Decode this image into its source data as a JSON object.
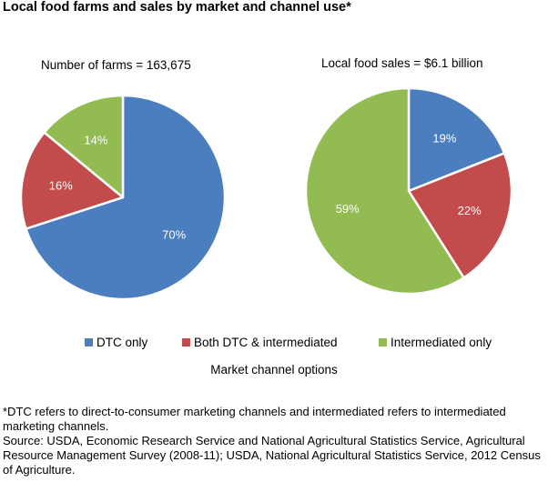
{
  "title": "Local food farms and sales by market and channel use*",
  "colors": {
    "dtc": "#4a7ebf",
    "both": "#c24b4b",
    "intermediated": "#92bb51"
  },
  "chart_data": [
    {
      "type": "pie",
      "title": "Number of farms = 163,675",
      "categories": [
        "DTC only",
        "Both DTC & intermediated",
        "Intermediated only"
      ],
      "values": [
        70,
        16,
        14
      ],
      "labels": [
        "70%",
        "16%",
        "14%"
      ],
      "unit": "%"
    },
    {
      "type": "pie",
      "title": "Local food sales = $6.1 billion",
      "categories": [
        "DTC only",
        "Both DTC & intermediated",
        "Intermediated only"
      ],
      "values": [
        19,
        22,
        59
      ],
      "labels": [
        "19%",
        "22%",
        "59%"
      ],
      "unit": "%"
    }
  ],
  "legend": {
    "items": [
      "DTC only",
      "Both DTC & intermediated",
      "Intermediated only"
    ],
    "caption": "Market channel options",
    "position": "bottom"
  },
  "footnote": {
    "definition": "*DTC refers to direct-to-consumer marketing channels and intermediated refers to intermediated marketing channels.",
    "source": "Source: USDA, Economic Research Service and National Agricultural Statistics Service, Agricultural Resource Management Survey (2008-11); USDA, National Agricultural Statistics Service, 2012 Census of Agriculture."
  }
}
